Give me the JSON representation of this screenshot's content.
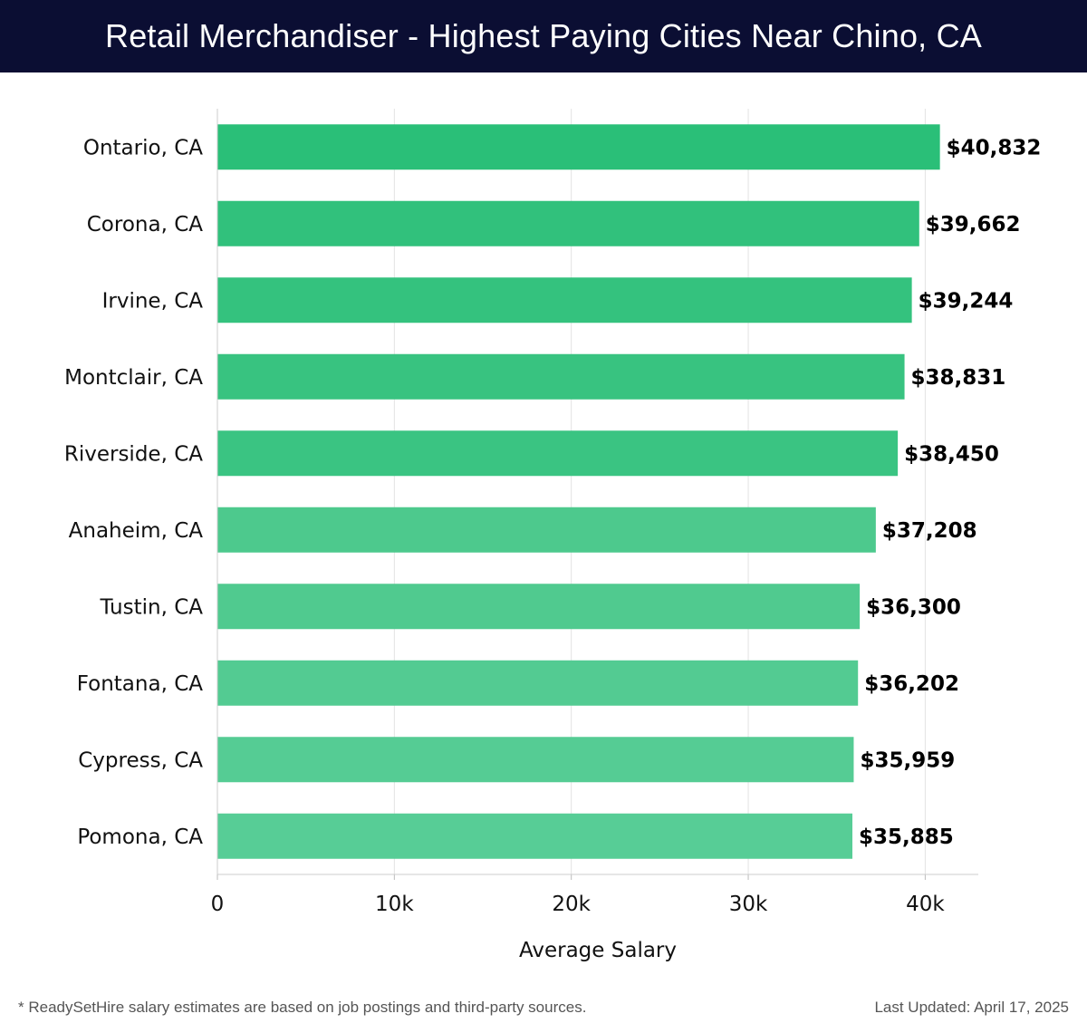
{
  "header": {
    "title": "Retail Merchandiser - Highest Paying Cities Near Chino, CA"
  },
  "chart_data": {
    "type": "bar",
    "orientation": "horizontal",
    "title": "Retail Merchandiser - Highest Paying Cities Near Chino, CA",
    "xlabel": "Average Salary",
    "ylabel": "",
    "categories": [
      "Ontario, CA",
      "Corona, CA",
      "Irvine, CA",
      "Montclair, CA",
      "Riverside, CA",
      "Anaheim, CA",
      "Tustin, CA",
      "Fontana, CA",
      "Cypress, CA",
      "Pomona, CA"
    ],
    "values": [
      40832,
      39662,
      39244,
      38831,
      38450,
      37208,
      36300,
      36202,
      35959,
      35885
    ],
    "value_labels": [
      "$40,832",
      "$39,662",
      "$39,244",
      "$38,831",
      "$38,450",
      "$37,208",
      "$36,300",
      "$36,202",
      "$35,959",
      "$35,885"
    ],
    "xlim": [
      0,
      43000
    ],
    "xticks": [
      0,
      10000,
      20000,
      30000,
      40000
    ],
    "xtick_labels": [
      "0",
      "10k",
      "20k",
      "30k",
      "40k"
    ],
    "grid": "vertical",
    "bar_colors": [
      "#2abf78",
      "#31c17c",
      "#34c27e",
      "#38c380",
      "#3ac482",
      "#4dc98d",
      "#50ca8f",
      "#53cb92",
      "#55cc94",
      "#57cd96"
    ]
  },
  "footer": {
    "note": "* ReadySetHire salary estimates are based on job postings and third-party sources.",
    "updated": "Last Updated: April 17, 2025"
  }
}
